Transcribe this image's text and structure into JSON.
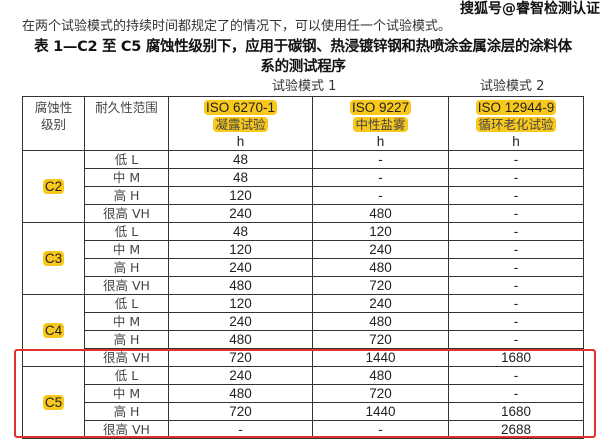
{
  "intro": "在两个试验模式的持续时间都规定了的情况下，可以使用任一个试验模式。",
  "watermark": "搜狐号@睿智检测认证",
  "title_line1": "表 1—C2 至 C5 腐蚀性级别下，应用于碳钢、热浸镀锌钢和热喷涂金属涂层的涂料体",
  "title_line2": "系的测试程序",
  "mode1": "试验模式 1",
  "mode2": "试验模式 2",
  "headers": {
    "class": [
      "腐蚀性",
      "级别"
    ],
    "durability": "耐久性范围",
    "col1": {
      "std": "ISO 6270-1",
      "name": "凝露试验",
      "unit": "h"
    },
    "col2": {
      "std": "ISO 9227",
      "name": "中性盐雾",
      "unit": "h"
    },
    "col3": {
      "std": "ISO 12944-9",
      "name": "循环老化试验",
      "unit": "h"
    }
  },
  "highlight_color": "#f8c91c",
  "box_color": "#e03030",
  "groups": [
    {
      "class": "C2",
      "rows": [
        [
          "低 L",
          "48",
          "-",
          "-"
        ],
        [
          "中 M",
          "48",
          "-",
          "-"
        ],
        [
          "高 H",
          "120",
          "-",
          "-"
        ],
        [
          "很高 VH",
          "240",
          "480",
          "-"
        ]
      ]
    },
    {
      "class": "C3",
      "rows": [
        [
          "低 L",
          "48",
          "120",
          "-"
        ],
        [
          "中 M",
          "120",
          "240",
          "-"
        ],
        [
          "高 H",
          "240",
          "480",
          "-"
        ],
        [
          "很高 VH",
          "480",
          "720",
          "-"
        ]
      ]
    },
    {
      "class": "C4",
      "rows": [
        [
          "低 L",
          "120",
          "240",
          "-"
        ],
        [
          "中 M",
          "240",
          "480",
          "-"
        ],
        [
          "高 H",
          "480",
          "720",
          "-"
        ],
        [
          "很高 VH",
          "720",
          "1440",
          "1680"
        ]
      ]
    },
    {
      "class": "C5",
      "rows": [
        [
          "低 L",
          "240",
          "480",
          "-"
        ],
        [
          "中 M",
          "480",
          "720",
          "-"
        ],
        [
          "高 H",
          "720",
          "1440",
          "1680"
        ],
        [
          "很高 VH",
          "-",
          "-",
          "2688"
        ]
      ]
    }
  ]
}
